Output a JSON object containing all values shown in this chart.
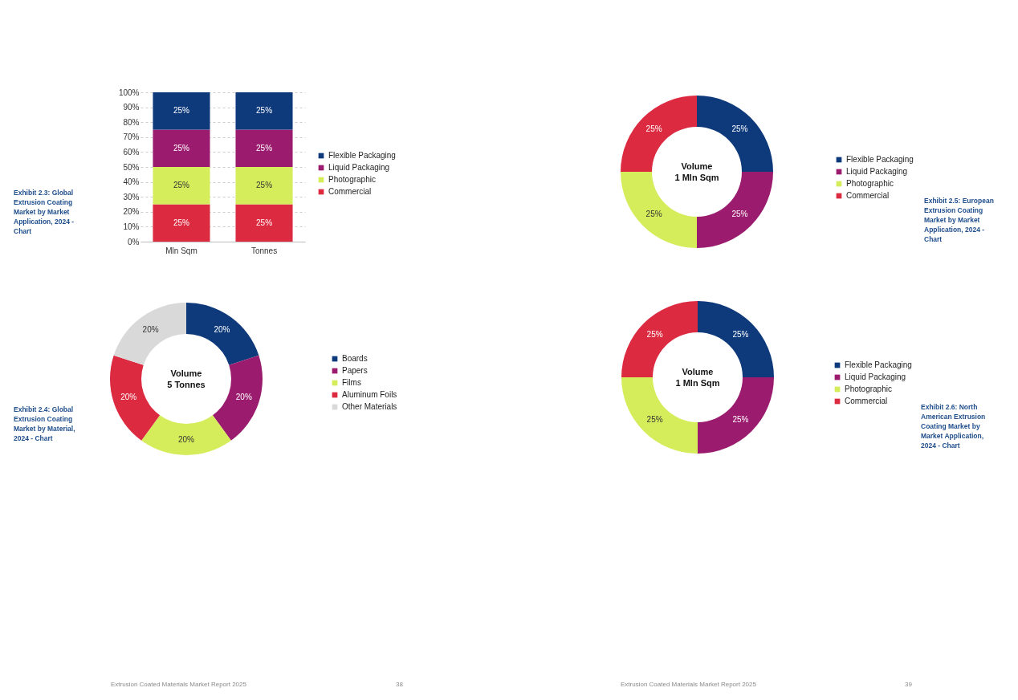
{
  "chart_data": [
    {
      "type": "bar",
      "stacked": true,
      "categories": [
        "Mln Sqm",
        "Tonnes"
      ],
      "ylim": [
        0,
        100
      ],
      "yticks": [
        {
          "value": 0,
          "label": "0%"
        },
        {
          "value": 10,
          "label": "10%"
        },
        {
          "value": 20,
          "label": "20%"
        },
        {
          "value": 30,
          "label": "30%"
        },
        {
          "value": 40,
          "label": "40%"
        },
        {
          "value": 50,
          "label": "50%"
        },
        {
          "value": 60,
          "label": "60%"
        },
        {
          "value": 70,
          "label": "70%"
        },
        {
          "value": 80,
          "label": "80%"
        },
        {
          "value": 90,
          "label": "90%"
        },
        {
          "value": 100,
          "label": "100%"
        }
      ],
      "grid": "y",
      "legend": "right",
      "series": [
        {
          "name": "Commercial",
          "color": "#dc2a40",
          "values": [
            25,
            25
          ],
          "value_labels": [
            "25%",
            "25%"
          ]
        },
        {
          "name": "Photographic",
          "color": "#d5ec5b",
          "values": [
            25,
            25
          ],
          "value_labels": [
            "25%",
            "25%"
          ]
        },
        {
          "name": "Liquid Packaging",
          "color": "#9b1c6e",
          "values": [
            25,
            25
          ],
          "value_labels": [
            "25%",
            "25%"
          ]
        },
        {
          "name": "Flexible Packaging",
          "color": "#0e3a7c",
          "values": [
            25,
            25
          ],
          "value_labels": [
            "25%",
            "25%"
          ]
        }
      ],
      "annotations": [
        "Exhibit 2.3: Global Extrusion Coating Market by Market Application, 2024 - Chart",
        "Extrusion Coated Materials Market Report 2025",
        "38"
      ]
    },
    {
      "type": "donut",
      "title": "Volume",
      "subtitle": "1 Mln Sqm",
      "legend": "right",
      "categories": [
        "Flexible Packaging",
        "Liquid Packaging",
        "Photographic",
        "Commercial"
      ],
      "values": [
        25,
        25,
        25,
        25
      ],
      "value_labels": [
        "25%",
        "25%",
        "25%",
        "25%"
      ],
      "colors": [
        "#0e3a7c",
        "#9b1c6e",
        "#d5ec5b",
        "#dc2a40"
      ],
      "annotations": [
        "Exhibit 2.5: European Extrusion Coating Market by Market Application, 2024 - Chart",
        "Extrusion Coated Materials Market Report 2025",
        "39"
      ]
    },
    {
      "type": "donut",
      "title": "Volume",
      "subtitle": "5 Tonnes",
      "legend": "right",
      "categories": [
        "Boards",
        "Papers",
        "Films",
        "Aluminum Foils",
        "Other Materials"
      ],
      "values": [
        20,
        20,
        20,
        20,
        20
      ],
      "value_labels": [
        "20%",
        "20%",
        "20%",
        "20%",
        "20%"
      ],
      "colors": [
        "#0e3a7c",
        "#9b1c6e",
        "#d5ec5b",
        "#dc2a40",
        "#d9d9d9"
      ],
      "annotations": [
        "Exhibit 2.4: Global Extrusion Coating Market by Material, 2024 - Chart"
      ]
    },
    {
      "type": "donut",
      "title": "Volume",
      "subtitle": "1 Mln Sqm",
      "legend": "right",
      "categories": [
        "Flexible Packaging",
        "Liquid Packaging",
        "Photographic",
        "Commercial"
      ],
      "values": [
        25,
        25,
        25,
        25
      ],
      "value_labels": [
        "25%",
        "25%",
        "25%",
        "25%"
      ],
      "colors": [
        "#0e3a7c",
        "#9b1c6e",
        "#d5ec5b",
        "#dc2a40"
      ],
      "annotations": [
        "Exhibit 2.6: North American Extrusion Coating Market by Market Application, 2024 - Chart"
      ]
    }
  ]
}
